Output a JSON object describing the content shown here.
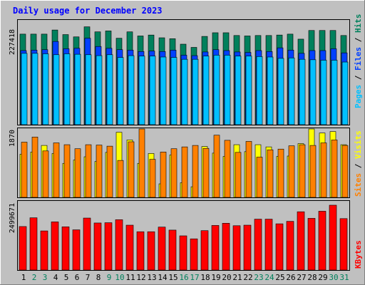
{
  "chart_data": [
    {
      "type": "bar",
      "title": "Daily usage for December 2023",
      "x": [
        "1",
        "2",
        "3",
        "4",
        "5",
        "6",
        "7",
        "8",
        "9",
        "10",
        "11",
        "12",
        "13",
        "14",
        "15",
        "16",
        "17",
        "18",
        "19",
        "20",
        "21",
        "22",
        "23",
        "24",
        "25",
        "26",
        "27",
        "28",
        "29",
        "30",
        "31"
      ],
      "weekend_days": [
        "2",
        "3",
        "9",
        "10",
        "16",
        "17",
        "23",
        "24",
        "30",
        "31"
      ],
      "y_tick_label": "227418",
      "ylim": [
        0,
        227418
      ],
      "legend": [
        "Pages",
        "Files",
        "Hits"
      ],
      "series": [
        {
          "name": "Hits",
          "values": [
            198000,
            198000,
            198000,
            207000,
            197000,
            192000,
            214000,
            203000,
            205000,
            189000,
            203000,
            194000,
            196000,
            190000,
            188000,
            176000,
            169000,
            193000,
            201000,
            201000,
            195000,
            194000,
            195000,
            195000,
            196000,
            198000,
            187000,
            206000,
            206000,
            206000,
            195000
          ]
        },
        {
          "name": "Files",
          "values": [
            162000,
            163000,
            164000,
            182000,
            166000,
            167000,
            189000,
            171000,
            167000,
            164000,
            163000,
            160000,
            161000,
            160000,
            163000,
            152000,
            151000,
            159000,
            164000,
            162000,
            159000,
            158000,
            162000,
            160000,
            168000,
            163000,
            156000,
            162000,
            162000,
            166000,
            157000
          ]
        },
        {
          "name": "Pages",
          "values": [
            156000,
            156000,
            155000,
            153000,
            155000,
            154000,
            153000,
            151000,
            153000,
            147000,
            151000,
            150000,
            150000,
            148000,
            147000,
            143000,
            143000,
            150000,
            152000,
            152000,
            150000,
            150000,
            149000,
            148000,
            145000,
            146000,
            143000,
            142000,
            141000,
            141000,
            137000
          ]
        }
      ]
    },
    {
      "type": "bar",
      "y_tick_label": "1870",
      "ylim": [
        0,
        1870
      ],
      "legend": [
        "Sites",
        "Visits"
      ],
      "series": [
        {
          "name": "Visits",
          "values": [
            1180,
            1240,
            1420,
            1200,
            930,
            1020,
            1110,
            980,
            1230,
            1780,
            1570,
            930,
            1200,
            370,
            1160,
            400,
            290,
            1390,
            1210,
            1120,
            1440,
            1250,
            1440,
            1380,
            1120,
            1130,
            1470,
            1890,
            1760,
            1800,
            1440
          ]
        },
        {
          "name": "Sites",
          "values": [
            1510,
            1650,
            1270,
            1490,
            1440,
            1330,
            1440,
            1430,
            1400,
            1010,
            1520,
            1920,
            1040,
            1240,
            1330,
            1380,
            1420,
            1340,
            1700,
            1560,
            1230,
            1530,
            1100,
            1300,
            1320,
            1410,
            1440,
            1420,
            1490,
            1570,
            1420
          ]
        }
      ]
    },
    {
      "type": "bar",
      "y_tick_label": "2499671",
      "ylim": [
        0,
        2499671
      ],
      "legend": [
        "KBytes"
      ],
      "series": [
        {
          "name": "KBytes",
          "values": [
            1590000,
            1910000,
            1430000,
            1760000,
            1580000,
            1470000,
            1900000,
            1720000,
            1730000,
            1840000,
            1640000,
            1400000,
            1400000,
            1570000,
            1460000,
            1250000,
            1140000,
            1440000,
            1630000,
            1710000,
            1620000,
            1640000,
            1860000,
            1860000,
            1690000,
            1780000,
            2130000,
            1890000,
            2150000,
            2370000,
            1880000
          ]
        }
      ]
    }
  ],
  "colors": {
    "background": "#c0c0c0",
    "title": "#0000ff",
    "Hits": "#00805c",
    "Files": "#0040ff",
    "Pages": "#00c0ff",
    "Visits": "#ffff00",
    "Sites": "#ff8000",
    "KBytes": "#ff0000",
    "weekday_label": "#000000",
    "weekend_label": "#00805c"
  }
}
